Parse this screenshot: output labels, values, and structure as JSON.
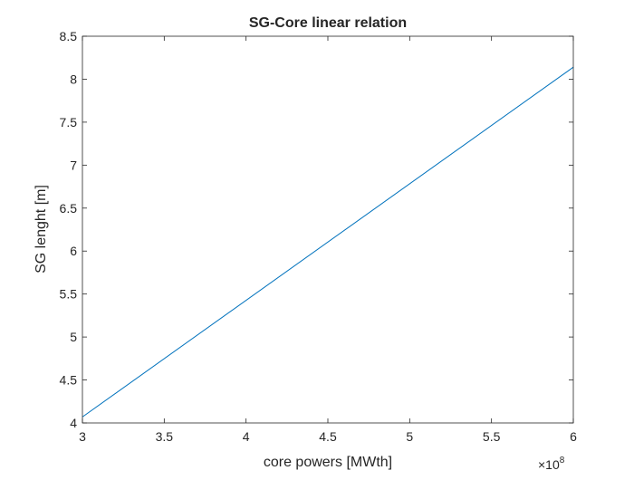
{
  "chart_data": {
    "type": "line",
    "title": "SG-Core linear relation",
    "xlabel": "core powers [MWth]",
    "ylabel": "SG lenght [m]",
    "x_exponent_label": {
      "base": "×10",
      "exponent": "8"
    },
    "x_scale_factor": 100000000,
    "xlim": [
      300000000,
      600000000
    ],
    "ylim": [
      4,
      8.5
    ],
    "x_ticks": [
      300000000,
      350000000,
      400000000,
      450000000,
      500000000,
      550000000,
      600000000
    ],
    "x_tick_labels": [
      "3",
      "3.5",
      "4",
      "4.5",
      "5",
      "5.5",
      "6"
    ],
    "y_ticks": [
      4,
      4.5,
      5,
      5.5,
      6,
      6.5,
      7,
      7.5,
      8,
      8.5
    ],
    "y_tick_labels": [
      "4",
      "4.5",
      "5",
      "5.5",
      "6",
      "6.5",
      "7",
      "7.5",
      "8",
      "8.5"
    ],
    "grid": false,
    "box": true,
    "series": [
      {
        "color": "#0072bd",
        "x": [
          300000000,
          600000000
        ],
        "y": [
          4.07,
          8.14
        ]
      }
    ]
  }
}
